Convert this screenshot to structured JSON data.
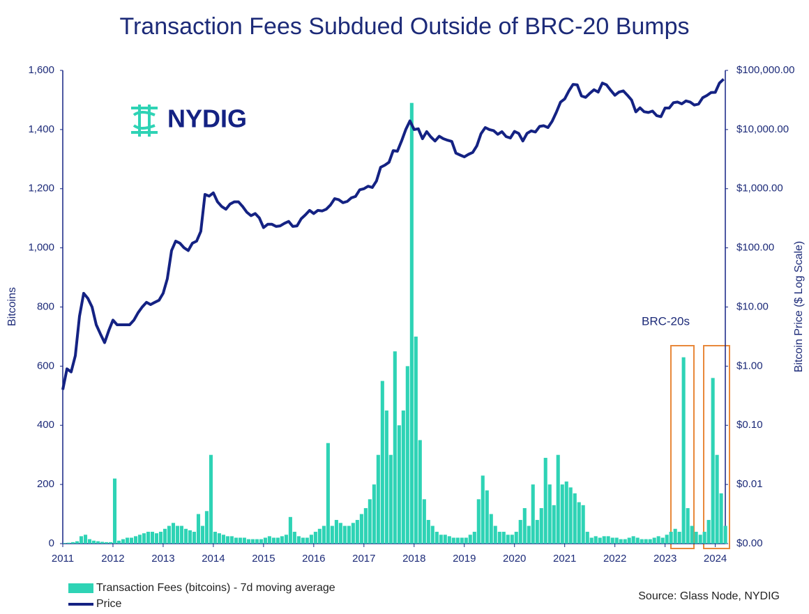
{
  "chart_data": {
    "type": "bar-line",
    "title": "Transaction Fees Subdued Outside of BRC-20 Bumps",
    "y_label": "Bitcoins",
    "y2_label": "Bitcoin Price ($  Log Scale)",
    "logo": "NYDIG",
    "annotation": "BRC-20s",
    "source": "Source: Glass Node, NYDIG",
    "xlim": [
      2011,
      2024.2
    ],
    "xticks": [
      2011,
      2012,
      2013,
      2014,
      2015,
      2016,
      2017,
      2018,
      2019,
      2020,
      2021,
      2022,
      2023,
      2024
    ],
    "ylim": [
      0,
      1600
    ],
    "yticks": [
      0,
      200,
      400,
      600,
      800,
      {
        "value": 1000,
        "label": "1,000"
      },
      {
        "value": 1200,
        "label": "1,200"
      },
      {
        "value": 1400,
        "label": "1,400"
      },
      {
        "value": 1600,
        "label": "1,600"
      }
    ],
    "y2lim": [
      0.001,
      100000
    ],
    "y2log": true,
    "y2ticks": [
      {
        "value": 0.001,
        "label": "$0.00"
      },
      {
        "value": 0.01,
        "label": "$0.01"
      },
      {
        "value": 0.1,
        "label": "$0.10"
      },
      {
        "value": 1,
        "label": "$1.00"
      },
      {
        "value": 10,
        "label": "$10.00"
      },
      {
        "value": 100,
        "label": "$100.00"
      },
      {
        "value": 1000,
        "label": "$1,000.00"
      },
      {
        "value": 10000,
        "label": "$10,000.00"
      },
      {
        "value": 100000,
        "label": "$100,000.00"
      }
    ],
    "x": [
      2011,
      2011.083,
      2011.167,
      2011.25,
      2011.333,
      2011.417,
      2011.5,
      2011.583,
      2011.667,
      2011.75,
      2011.833,
      2011.917,
      2012,
      2012.083,
      2012.167,
      2012.25,
      2012.333,
      2012.417,
      2012.5,
      2012.583,
      2012.667,
      2012.75,
      2012.833,
      2012.917,
      2013,
      2013.083,
      2013.167,
      2013.25,
      2013.333,
      2013.417,
      2013.5,
      2013.583,
      2013.667,
      2013.75,
      2013.833,
      2013.917,
      2014,
      2014.083,
      2014.167,
      2014.25,
      2014.333,
      2014.417,
      2014.5,
      2014.583,
      2014.667,
      2014.75,
      2014.833,
      2014.917,
      2015,
      2015.083,
      2015.167,
      2015.25,
      2015.333,
      2015.417,
      2015.5,
      2015.583,
      2015.667,
      2015.75,
      2015.833,
      2015.917,
      2016,
      2016.083,
      2016.167,
      2016.25,
      2016.333,
      2016.417,
      2016.5,
      2016.583,
      2016.667,
      2016.75,
      2016.833,
      2016.917,
      2017,
      2017.083,
      2017.167,
      2017.25,
      2017.333,
      2017.417,
      2017.5,
      2017.583,
      2017.667,
      2017.75,
      2017.833,
      2017.917,
      2018,
      2018.083,
      2018.167,
      2018.25,
      2018.333,
      2018.417,
      2018.5,
      2018.583,
      2018.667,
      2018.75,
      2018.833,
      2018.917,
      2019,
      2019.083,
      2019.167,
      2019.25,
      2019.333,
      2019.417,
      2019.5,
      2019.583,
      2019.667,
      2019.75,
      2019.833,
      2019.917,
      2020,
      2020.083,
      2020.167,
      2020.25,
      2020.333,
      2020.417,
      2020.5,
      2020.583,
      2020.667,
      2020.75,
      2020.833,
      2020.917,
      2021,
      2021.083,
      2021.167,
      2021.25,
      2021.333,
      2021.417,
      2021.5,
      2021.583,
      2021.667,
      2021.75,
      2021.833,
      2021.917,
      2022,
      2022.083,
      2022.167,
      2022.25,
      2022.333,
      2022.417,
      2022.5,
      2022.583,
      2022.667,
      2022.75,
      2022.833,
      2022.917,
      2023,
      2023.083,
      2023.167,
      2023.25,
      2023.333,
      2023.417,
      2023.5,
      2023.583,
      2023.667,
      2023.75,
      2023.833,
      2023.917,
      2024,
      2024.083,
      2024.167
    ],
    "series": [
      {
        "name": "Transaction Fees (bitcoins) - 7d moving average",
        "color": "#2ed3b5",
        "values": [
          2,
          3,
          5,
          8,
          25,
          30,
          15,
          10,
          8,
          6,
          5,
          5,
          220,
          10,
          15,
          20,
          20,
          25,
          30,
          35,
          40,
          40,
          35,
          40,
          50,
          60,
          70,
          60,
          60,
          50,
          45,
          40,
          100,
          60,
          110,
          300,
          40,
          35,
          30,
          25,
          25,
          20,
          20,
          20,
          15,
          15,
          15,
          15,
          20,
          25,
          20,
          20,
          25,
          30,
          90,
          40,
          25,
          20,
          20,
          30,
          40,
          50,
          60,
          340,
          60,
          80,
          70,
          60,
          60,
          70,
          80,
          100,
          120,
          150,
          200,
          300,
          550,
          450,
          300,
          650,
          400,
          450,
          600,
          1490,
          700,
          350,
          150,
          80,
          60,
          40,
          30,
          30,
          25,
          20,
          20,
          20,
          20,
          30,
          40,
          150,
          230,
          180,
          100,
          60,
          40,
          40,
          30,
          30,
          40,
          80,
          120,
          60,
          200,
          80,
          120,
          290,
          200,
          130,
          300,
          200,
          210,
          190,
          170,
          140,
          130,
          40,
          20,
          25,
          20,
          25,
          25,
          20,
          20,
          15,
          15,
          20,
          25,
          20,
          15,
          15,
          15,
          20,
          25,
          20,
          30,
          40,
          50,
          40,
          630,
          120,
          60,
          40,
          30,
          40,
          80,
          560,
          300,
          170,
          60
        ]
      },
      {
        "name": "Price",
        "color": "#142283",
        "axis": "y2",
        "values": [
          0.4,
          0.9,
          0.8,
          1.5,
          7,
          17,
          14,
          10,
          5,
          3.5,
          2.5,
          4,
          6,
          5,
          5,
          5,
          5,
          6,
          8,
          10,
          12,
          11,
          12,
          13,
          17,
          30,
          90,
          130,
          120,
          100,
          90,
          120,
          130,
          190,
          800,
          750,
          850,
          600,
          500,
          450,
          550,
          600,
          600,
          500,
          400,
          350,
          380,
          320,
          220,
          250,
          250,
          230,
          235,
          260,
          280,
          230,
          235,
          310,
          360,
          430,
          380,
          430,
          420,
          450,
          530,
          680,
          650,
          580,
          610,
          700,
          740,
          960,
          1000,
          1100,
          1050,
          1350,
          2300,
          2500,
          2800,
          4400,
          4300,
          6400,
          10000,
          14000,
          10000,
          10300,
          7000,
          9200,
          7500,
          6400,
          7700,
          7000,
          6600,
          6300,
          4000,
          3700,
          3450,
          3800,
          4100,
          5300,
          8500,
          10800,
          10000,
          9600,
          8300,
          9200,
          7600,
          7200,
          9300,
          8600,
          6400,
          8600,
          9500,
          9100,
          11300,
          11600,
          10800,
          13800,
          19600,
          29000,
          33000,
          45000,
          58000,
          57000,
          37000,
          35000,
          41000,
          47000,
          43000,
          61000,
          57000,
          46000,
          38000,
          43000,
          45000,
          38000,
          31500,
          19900,
          23300,
          20000,
          19400,
          20500,
          17200,
          16500,
          23100,
          23100,
          28500,
          29200,
          27200,
          30500,
          29200,
          26000,
          27000,
          34500,
          37700,
          42300,
          42600,
          61000,
          71000
        ]
      }
    ]
  }
}
